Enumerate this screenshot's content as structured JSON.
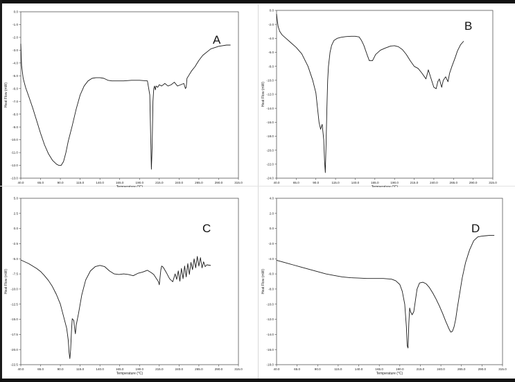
{
  "chart_data": [
    {
      "type": "line",
      "panel_label": "A",
      "xlabel": "Temperature (°C)",
      "ylabel": "Heat Flow (mW)",
      "xlim": [
        40,
        315
      ],
      "ylim": [
        -13,
        0
      ],
      "x_ticks": [
        "40.0",
        "65.0",
        "90.0",
        "115.0",
        "140.0",
        "165.0",
        "190.0",
        "215.0",
        "240.0",
        "265.0",
        "290.0",
        "315.0"
      ],
      "y_ticks": [
        "0.0",
        "-1.0",
        "-2.0",
        "-3.0",
        "-4.0",
        "-5.0",
        "-6.0",
        "-7.0",
        "-8.0",
        "-9.0",
        "-10.0",
        "-11.0",
        "-12.0",
        "-13.0"
      ],
      "series": [
        {
          "x": [
            40,
            41,
            43,
            46,
            50,
            55,
            60,
            65,
            70,
            75,
            80,
            85,
            88,
            91,
            94,
            97,
            100,
            105,
            110,
            115,
            120,
            125,
            130,
            135,
            140,
            145,
            150,
            155,
            160,
            170,
            180,
            190,
            200,
            203,
            204,
            205,
            206,
            207,
            208,
            209,
            210,
            211,
            213,
            215,
            218,
            222,
            226,
            230,
            234,
            238,
            242,
            246,
            248,
            249,
            250,
            252,
            256,
            260,
            265,
            270,
            280,
            290,
            300,
            305
          ],
          "y": [
            -2.5,
            -4.2,
            -5.2,
            -5.9,
            -6.6,
            -7.5,
            -8.5,
            -9.5,
            -10.4,
            -11.1,
            -11.6,
            -11.9,
            -12.0,
            -12.0,
            -11.7,
            -11.0,
            -10.1,
            -8.9,
            -7.6,
            -6.5,
            -5.8,
            -5.4,
            -5.2,
            -5.15,
            -5.15,
            -5.2,
            -5.35,
            -5.4,
            -5.4,
            -5.4,
            -5.35,
            -5.35,
            -5.4,
            -6.5,
            -9.5,
            -12.3,
            -10.5,
            -7.0,
            -6.0,
            -5.8,
            -6.1,
            -5.8,
            -5.9,
            -5.7,
            -5.8,
            -5.6,
            -5.8,
            -5.7,
            -5.5,
            -5.8,
            -5.7,
            -5.6,
            -6.0,
            -5.9,
            -5.2,
            -5.0,
            -4.6,
            -4.3,
            -3.8,
            -3.4,
            -2.9,
            -2.7,
            -2.6,
            -2.6
          ]
        }
      ]
    },
    {
      "type": "line",
      "panel_label": "B",
      "xlabel": "Temperature (°C)",
      "ylabel": "Heat Flow (mW)",
      "xlim": [
        40,
        315
      ],
      "ylim": [
        -24,
        0
      ],
      "x_ticks": [
        "40.0",
        "65.0",
        "90.0",
        "115.0",
        "140.0",
        "165.0",
        "190.0",
        "215.0",
        "240.0",
        "265.0",
        "290.0",
        "315.0"
      ],
      "y_ticks": [
        "0.0",
        "-2.0",
        "-4.0",
        "-6.0",
        "-8.0",
        "-10.0",
        "-12.0",
        "-14.0",
        "-16.0",
        "-18.0",
        "-20.0",
        "-22.0",
        "-24.0"
      ],
      "series": [
        {
          "x": [
            40,
            41,
            42,
            44,
            47,
            52,
            58,
            65,
            72,
            80,
            86,
            90,
            94,
            96,
            98,
            100,
            101,
            102,
            103,
            104,
            105,
            106,
            108,
            110,
            113,
            117,
            122,
            128,
            135,
            140,
            145,
            148,
            151,
            155,
            158,
            162,
            166,
            172,
            178,
            185,
            190,
            195,
            200,
            205,
            210,
            215,
            220,
            225,
            230,
            233,
            236,
            240,
            243,
            245,
            247,
            250,
            252,
            255,
            258,
            260,
            263,
            267,
            270,
            274,
            278
          ],
          "y": [
            -0.5,
            -1.5,
            -2.3,
            -3.0,
            -3.5,
            -4.0,
            -4.6,
            -5.3,
            -6.2,
            -8.0,
            -10.0,
            -11.8,
            -16.0,
            -17.0,
            -16.3,
            -18.5,
            -21.5,
            -23.2,
            -19.0,
            -14.0,
            -10.0,
            -8.0,
            -6.0,
            -5.0,
            -4.3,
            -4.0,
            -3.85,
            -3.75,
            -3.7,
            -3.7,
            -3.8,
            -4.3,
            -5.0,
            -6.3,
            -7.2,
            -7.2,
            -6.3,
            -5.7,
            -5.4,
            -5.1,
            -5.05,
            -5.2,
            -5.6,
            -6.3,
            -7.2,
            -8.0,
            -8.3,
            -9.0,
            -9.8,
            -8.5,
            -9.6,
            -11.0,
            -11.2,
            -10.2,
            -9.8,
            -11.0,
            -10.0,
            -9.5,
            -10.2,
            -9.0,
            -8.0,
            -6.8,
            -5.8,
            -4.9,
            -4.4
          ]
        }
      ]
    },
    {
      "type": "line",
      "panel_label": "C",
      "xlabel": "Temperature (°C)",
      "ylabel": "Heat Flow (mW)",
      "xlim": [
        40,
        315
      ],
      "ylim": [
        -22.5,
        5
      ],
      "x_ticks": [
        "40.0",
        "65.0",
        "90.0",
        "115.0",
        "140.0",
        "165.0",
        "190.0",
        "215.0",
        "240.0",
        "265.0",
        "290.0",
        "315.0"
      ],
      "y_ticks": [
        "5.0",
        "2.5",
        "0.0",
        "-2.5",
        "-5.0",
        "-7.5",
        "-10.0",
        "-12.5",
        "-15.0",
        "-17.5",
        "-20.0",
        "-22.5"
      ],
      "series": [
        {
          "x": [
            40,
            45,
            50,
            55,
            60,
            65,
            70,
            75,
            80,
            85,
            90,
            94,
            98,
            100,
            101,
            102,
            103,
            104,
            105,
            107,
            108,
            109,
            110,
            113,
            117,
            122,
            128,
            134,
            140,
            146,
            152,
            158,
            164,
            170,
            176,
            182,
            188,
            194,
            200,
            205,
            208,
            211,
            214,
            215,
            216,
            217,
            218,
            220,
            224,
            228,
            232,
            235,
            237,
            239,
            241,
            243,
            245,
            247,
            249,
            251,
            253,
            255,
            257,
            259,
            261,
            263,
            265,
            267,
            269,
            271,
            273,
            275,
            280
          ],
          "y": [
            -5.2,
            -5.5,
            -5.8,
            -6.2,
            -6.6,
            -7.1,
            -7.8,
            -8.6,
            -9.6,
            -10.9,
            -12.5,
            -14.5,
            -16.5,
            -18.5,
            -20.5,
            -21.5,
            -20.0,
            -17.0,
            -14.9,
            -15.2,
            -16.5,
            -17.4,
            -16.0,
            -14.0,
            -11.0,
            -8.5,
            -7.0,
            -6.3,
            -6.1,
            -6.3,
            -7.0,
            -7.5,
            -7.6,
            -7.5,
            -7.6,
            -7.8,
            -7.4,
            -7.2,
            -6.9,
            -7.3,
            -7.6,
            -8.2,
            -8.8,
            -9.3,
            -8.0,
            -6.8,
            -6.2,
            -6.4,
            -7.3,
            -8.3,
            -8.8,
            -7.5,
            -8.4,
            -7.0,
            -8.7,
            -6.6,
            -8.3,
            -6.2,
            -8.0,
            -5.8,
            -7.6,
            -5.6,
            -6.8,
            -5.0,
            -6.5,
            -4.6,
            -6.2,
            -4.8,
            -6.5,
            -5.5,
            -6.3,
            -6.0,
            -6.1
          ]
        }
      ]
    },
    {
      "type": "line",
      "panel_label": "D",
      "xlabel": "Temperature (°C)",
      "ylabel": "Heat Flow (mW)",
      "xlim": [
        40,
        315
      ],
      "ylim": [
        -18,
        4
      ],
      "x_ticks": [
        "40.0",
        "65.0",
        "90.0",
        "115.0",
        "140.0",
        "165.0",
        "190.0",
        "215.0",
        "240.0",
        "265.0",
        "290.0",
        "315.0"
      ],
      "y_ticks": [
        "4.0",
        "2.0",
        "0.0",
        "-2.0",
        "-4.0",
        "-6.0",
        "-8.0",
        "-10.0",
        "-12.0",
        "-14.0",
        "-16.0",
        "-18.0"
      ],
      "series": [
        {
          "x": [
            40,
            50,
            60,
            70,
            80,
            90,
            100,
            110,
            120,
            130,
            140,
            150,
            160,
            170,
            180,
            185,
            190,
            193,
            196,
            198,
            199,
            200,
            201,
            202,
            203,
            205,
            207,
            209,
            211,
            214,
            218,
            222,
            226,
            230,
            234,
            238,
            242,
            246,
            250,
            252,
            254,
            256,
            258,
            260,
            263,
            266,
            270,
            275,
            280,
            285,
            290,
            295,
            300,
            305
          ],
          "y": [
            -4.2,
            -4.5,
            -4.8,
            -5.1,
            -5.4,
            -5.7,
            -6.0,
            -6.2,
            -6.4,
            -6.5,
            -6.55,
            -6.6,
            -6.6,
            -6.6,
            -6.7,
            -6.9,
            -7.4,
            -8.3,
            -10.0,
            -13.0,
            -15.5,
            -15.8,
            -12.5,
            -10.5,
            -11.0,
            -11.4,
            -11.0,
            -9.5,
            -8.0,
            -7.2,
            -7.1,
            -7.3,
            -7.8,
            -8.5,
            -9.3,
            -10.2,
            -11.2,
            -12.3,
            -13.3,
            -13.7,
            -13.6,
            -13.0,
            -12.0,
            -10.5,
            -8.5,
            -6.5,
            -4.5,
            -2.8,
            -1.6,
            -1.1,
            -1.0,
            -0.95,
            -0.9,
            -0.9
          ]
        }
      ]
    }
  ]
}
